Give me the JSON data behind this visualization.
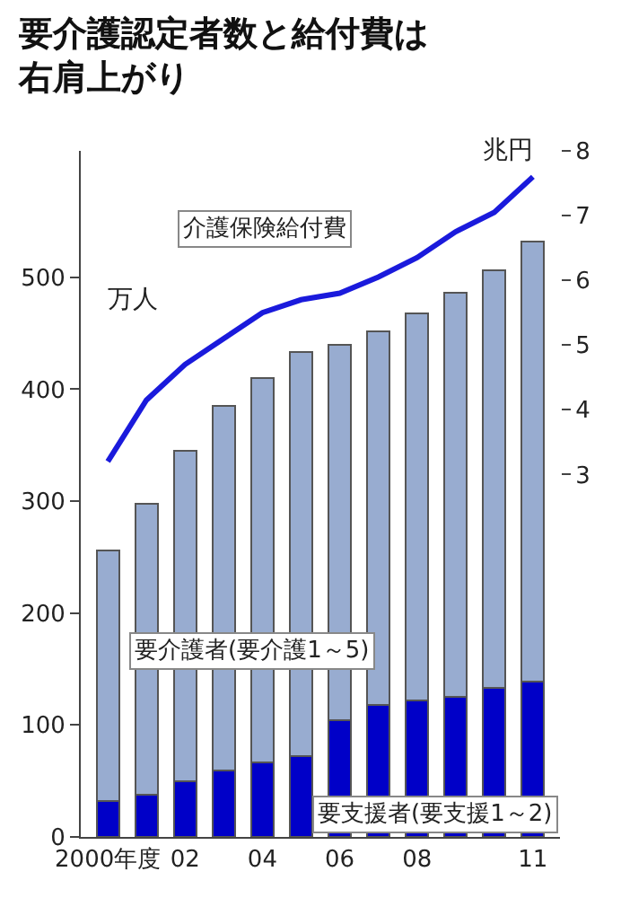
{
  "chart_data": {
    "type": "bar",
    "title": "要介護認定者数と給付費は右肩上がり",
    "ylabel": "万人",
    "y2label": "兆円",
    "categories": [
      "2000年度",
      null,
      "02",
      null,
      "04",
      null,
      "06",
      null,
      "08",
      null,
      null,
      "11"
    ],
    "stacked": true,
    "series": [
      {
        "name": "要支援者(要支援1～2)",
        "color": "#0000c8",
        "values": [
          32,
          38,
          50,
          59,
          67,
          72,
          104,
          118,
          122,
          125,
          133,
          139
        ]
      },
      {
        "name": "要介護者(要介護1～5)",
        "color": "#98acd0",
        "values": [
          224,
          260,
          295,
          326,
          343,
          361,
          336,
          334,
          346,
          361,
          373,
          393
        ]
      },
      {
        "name": "介護保険給付費",
        "type": "line",
        "axis": "y2",
        "color": "#1a1adc",
        "values": [
          3.2,
          4.15,
          4.7,
          5.1,
          5.5,
          5.7,
          5.8,
          6.05,
          6.35,
          6.75,
          7.05,
          7.6
        ]
      }
    ],
    "ylim": [
      0,
      613
    ],
    "yticks": [
      0,
      100,
      200,
      300,
      400,
      500
    ],
    "y2lim": [
      -2.6,
      8
    ],
    "y2ticks": [
      3,
      4,
      5,
      6,
      7,
      8
    ],
    "marker": "none",
    "line_style": "solid"
  }
}
